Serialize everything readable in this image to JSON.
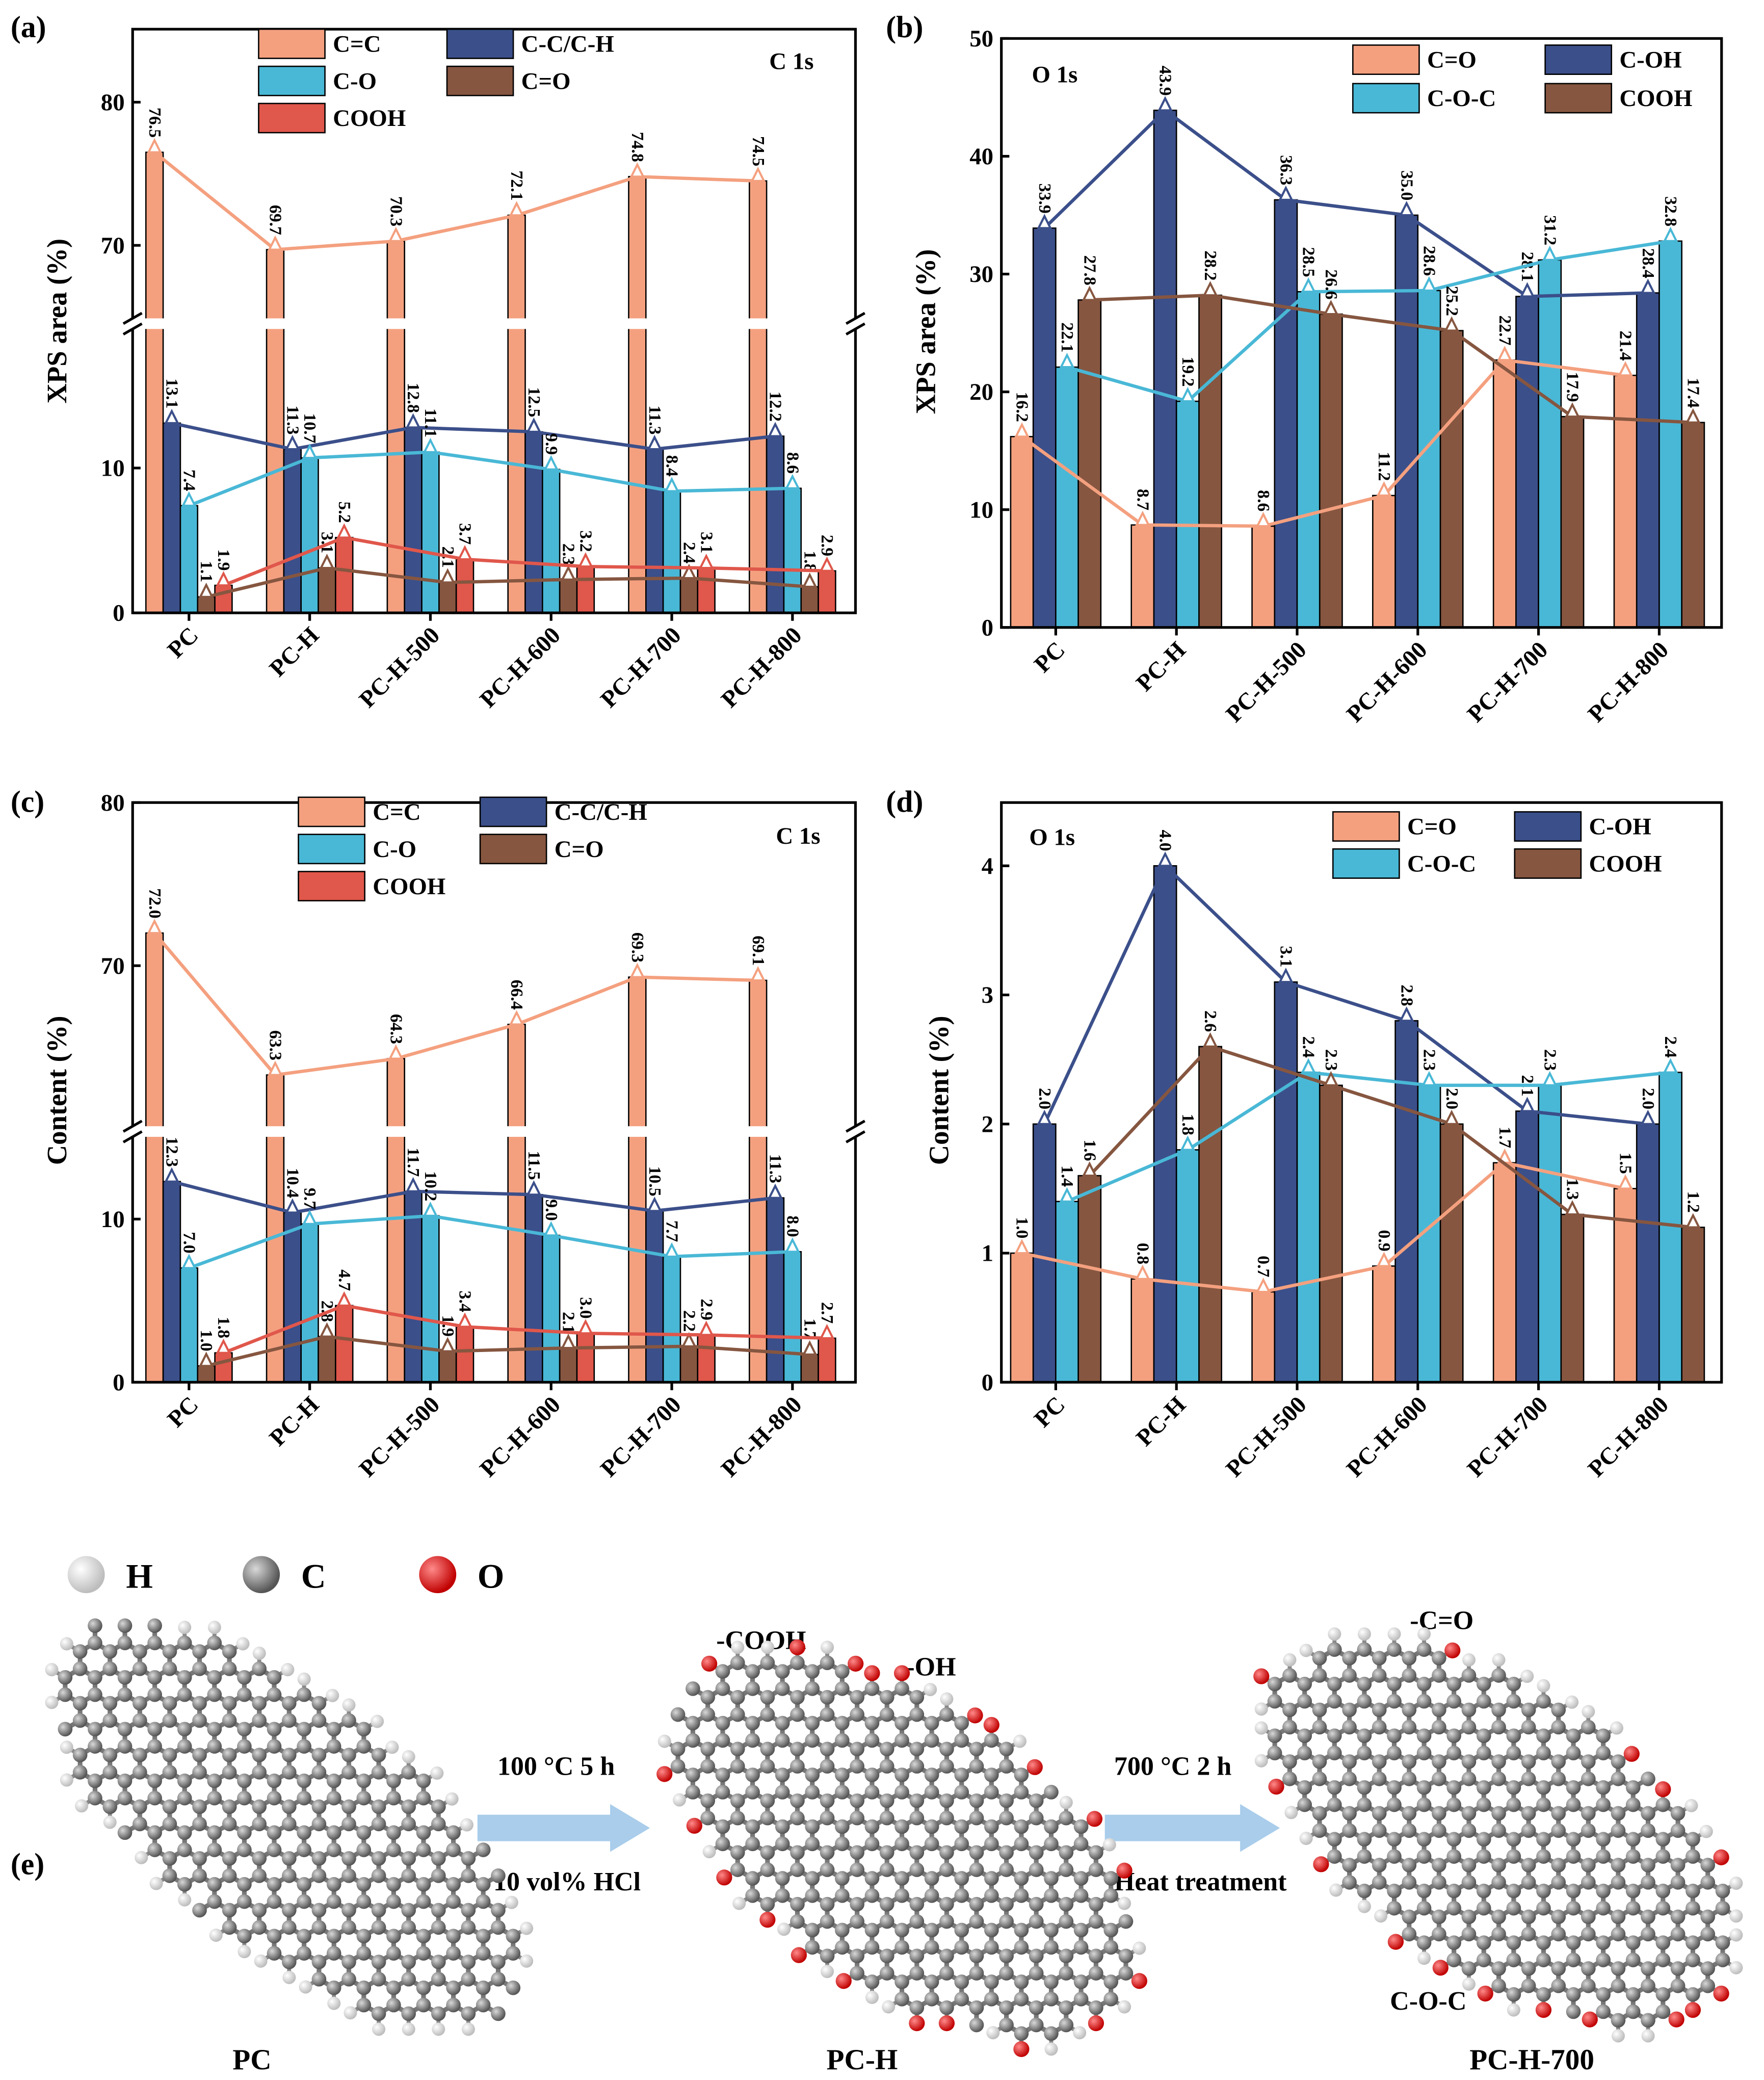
{
  "chart_data": [
    {
      "type": "bar",
      "panel_label": "(a)",
      "annotation": "C 1s",
      "ylabel": "XPS area (%)",
      "xlabel": "",
      "categories": [
        "PC",
        "PC-H",
        "PC-H-500",
        "PC-H-600",
        "PC-H-700",
        "PC-H-800"
      ],
      "series": [
        {
          "name": "C=C",
          "color": "#F4A07F",
          "values": [
            76.5,
            69.7,
            70.3,
            72.1,
            74.8,
            74.5
          ]
        },
        {
          "name": "C-C/C-H",
          "color": "#3B4F8A",
          "values": [
            13.1,
            11.3,
            12.8,
            12.5,
            11.3,
            12.2
          ]
        },
        {
          "name": "C-O",
          "color": "#49B8D6",
          "values": [
            7.4,
            10.7,
            11.1,
            9.9,
            8.4,
            8.6
          ]
        },
        {
          "name": "C=O",
          "color": "#865640",
          "values": [
            1.1,
            3.1,
            2.1,
            2.3,
            2.4,
            1.8
          ]
        },
        {
          "name": "COOH",
          "color": "#E0574B",
          "values": [
            1.9,
            5.2,
            3.7,
            3.2,
            3.1,
            2.9
          ]
        }
      ],
      "y_ticks": [
        0,
        10,
        70,
        80
      ],
      "axis_break": [
        19.6,
        64.9
      ],
      "ylim": [
        0,
        85.1
      ],
      "legend_placement": "top"
    },
    {
      "type": "bar",
      "panel_label": "(b)",
      "annotation": "O 1s",
      "ylabel": "XPS area (%)",
      "xlabel": "",
      "categories": [
        "PC",
        "PC-H",
        "PC-H-500",
        "PC-H-600",
        "PC-H-700",
        "PC-H-800"
      ],
      "series": [
        {
          "name": "C=O",
          "color": "#F4A07F",
          "values": [
            16.2,
            8.7,
            8.6,
            11.2,
            22.7,
            21.4
          ]
        },
        {
          "name": "C-OH",
          "color": "#3B4F8A",
          "values": [
            33.9,
            43.9,
            36.3,
            35.0,
            28.1,
            28.4
          ]
        },
        {
          "name": "C-O-C",
          "color": "#49B8D6",
          "values": [
            22.1,
            19.2,
            28.5,
            28.6,
            31.2,
            32.8
          ]
        },
        {
          "name": "COOH",
          "color": "#865640",
          "values": [
            27.8,
            28.2,
            26.6,
            25.2,
            17.9,
            17.4
          ]
        }
      ],
      "y_ticks": [
        0,
        10,
        20,
        30,
        40,
        50
      ],
      "ylim": [
        0,
        50
      ],
      "legend_placement": "top-right"
    },
    {
      "type": "bar",
      "panel_label": "(c)",
      "annotation": "C 1s",
      "ylabel": "Content (%)",
      "xlabel": "",
      "categories": [
        "PC",
        "PC-H",
        "PC-H-500",
        "PC-H-600",
        "PC-H-700",
        "PC-H-800"
      ],
      "series": [
        {
          "name": "C=C",
          "color": "#F4A07F",
          "values": [
            72.0,
            63.3,
            64.3,
            66.4,
            69.3,
            69.1
          ]
        },
        {
          "name": "C-C/C-H",
          "color": "#3B4F8A",
          "values": [
            12.3,
            10.4,
            11.7,
            11.5,
            10.5,
            11.3
          ]
        },
        {
          "name": "C-O",
          "color": "#49B8D6",
          "values": [
            7.0,
            9.7,
            10.2,
            9.0,
            7.7,
            8.0
          ]
        },
        {
          "name": "C=O",
          "color": "#865640",
          "values": [
            1.0,
            2.8,
            1.9,
            2.1,
            2.2,
            1.7
          ]
        },
        {
          "name": "COOH",
          "color": "#E0574B",
          "values": [
            1.8,
            4.7,
            3.4,
            3.0,
            2.9,
            2.7
          ]
        }
      ],
      "y_ticks": [
        0,
        10,
        70,
        80
      ],
      "axis_break": [
        15.0,
        60.2
      ],
      "ylim": [
        0,
        80
      ],
      "legend_placement": "top"
    },
    {
      "type": "bar",
      "panel_label": "(d)",
      "annotation": "O 1s",
      "ylabel": "Content (%)",
      "xlabel": "",
      "categories": [
        "PC",
        "PC-H",
        "PC-H-500",
        "PC-H-600",
        "PC-H-700",
        "PC-H-800"
      ],
      "series": [
        {
          "name": "C=O",
          "color": "#F4A07F",
          "values": [
            1.0,
            0.8,
            0.7,
            0.9,
            1.7,
            1.5
          ]
        },
        {
          "name": "C-OH",
          "color": "#3B4F8A",
          "values": [
            2.0,
            4.0,
            3.1,
            2.8,
            2.1,
            2.0
          ]
        },
        {
          "name": "C-O-C",
          "color": "#49B8D6",
          "values": [
            1.4,
            1.8,
            2.4,
            2.3,
            2.3,
            2.4
          ]
        },
        {
          "name": "COOH",
          "color": "#865640",
          "values": [
            1.6,
            2.6,
            2.3,
            2.0,
            1.3,
            1.2
          ]
        }
      ],
      "y_ticks": [
        0,
        1,
        2,
        3,
        4
      ],
      "ylim": [
        0,
        4.5
      ],
      "legend_placement": "top-right"
    }
  ],
  "scheme": {
    "panel_label": "(e)",
    "atom_legend": [
      {
        "symbol": "H",
        "color": "#F2F2F2"
      },
      {
        "symbol": "C",
        "color": "#808080"
      },
      {
        "symbol": "O",
        "color": "#E8151B"
      }
    ],
    "structures": [
      "PC",
      "PC-H",
      "PC-H-700"
    ],
    "steps": [
      {
        "conditions": "100 °C 5 h",
        "reagent": "10 vol% HCl"
      },
      {
        "conditions": "700 °C 2 h",
        "reagent": "Heat treatment"
      }
    ],
    "group_labels": {
      "cooh": "-COOH",
      "oh": "-OH",
      "co": "-C=O",
      "coc": "C-O-C"
    },
    "arrow_color": "#A9CDEB"
  }
}
